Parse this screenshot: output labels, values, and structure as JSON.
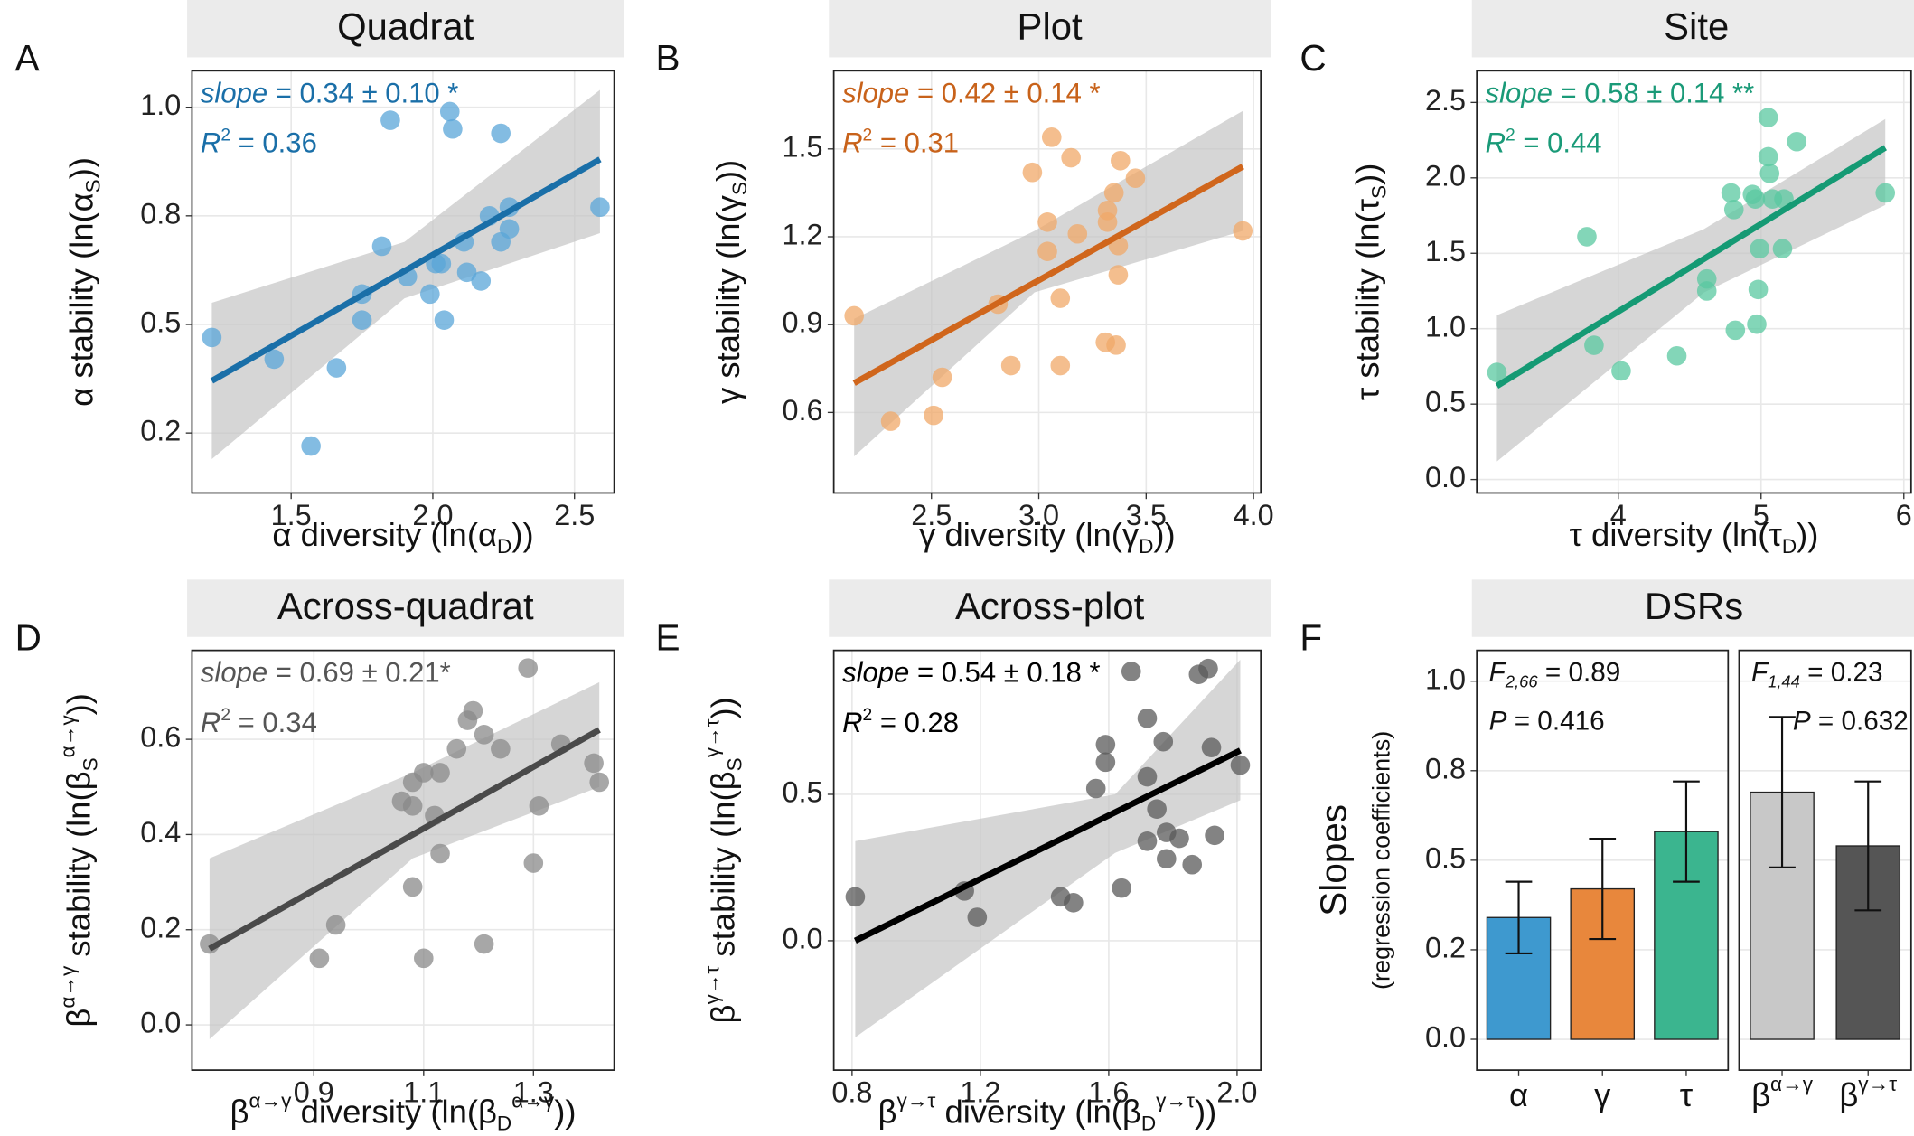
{
  "chart_data": [
    {
      "type": "scatter",
      "panel": "A",
      "title": "Quadrat",
      "color": "#5aa5d8",
      "line_color": "#1a6fa8",
      "text_color": "#1a6fa8",
      "xlabel": [
        "α diversity ",
        "(ln(α",
        {
          "text": "D",
          "style": "sub"
        },
        "))"
      ],
      "ylabel": [
        "α stability ",
        "(ln(α",
        {
          "text": "S",
          "style": "sub"
        },
        "))"
      ],
      "annotations": [
        [
          {
            "text": "slope",
            "style": "italic"
          },
          " = 0.34 ± 0.10 *"
        ],
        [
          {
            "text": "R",
            "style": "italic"
          },
          {
            "text": "2",
            "style": "sup"
          },
          " = 0.36"
        ]
      ],
      "xlim": [
        1.15,
        2.64
      ],
      "ylim": [
        0.112,
        1.084
      ],
      "xticks": [
        1.5,
        {
          "value": 2,
          "label": "2.0"
        },
        2.5
      ],
      "yticks": [
        {
          "value": 0.25,
          "label": "0.2"
        },
        0.5,
        {
          "value": 0.75,
          "label": "0.8"
        },
        {
          "value": 1,
          "label": "1.0"
        }
      ],
      "x": [
        1.22,
        1.44,
        1.57,
        1.66,
        1.75,
        1.75,
        1.82,
        1.85,
        1.91,
        1.99,
        2.01,
        2.03,
        2.04,
        2.06,
        2.07,
        2.11,
        2.12,
        2.17,
        2.2,
        2.24,
        2.24,
        2.27,
        2.27,
        2.59
      ],
      "y": [
        0.47,
        0.42,
        0.22,
        0.4,
        0.57,
        0.51,
        0.68,
        0.97,
        0.61,
        0.57,
        0.64,
        0.64,
        0.51,
        0.99,
        0.95,
        0.69,
        0.62,
        0.6,
        0.75,
        0.94,
        0.69,
        0.77,
        0.72,
        0.77
      ],
      "fit": {
        "x": [
          1.22,
          2.59
        ],
        "y": [
          0.37,
          0.88
        ]
      },
      "band": {
        "x": [
          1.22,
          1.9,
          2.59
        ],
        "lower": [
          0.19,
          0.56,
          0.71
        ],
        "upper": [
          0.55,
          0.69,
          1.04
        ]
      },
      "grid": true
    },
    {
      "type": "scatter",
      "panel": "B",
      "title": "Plot",
      "color": "#f0a868",
      "line_color": "#d0661c",
      "text_color": "#c8621a",
      "xlabel": [
        "γ diversity ",
        "(ln(γ",
        {
          "text": "D",
          "style": "sub"
        },
        "))"
      ],
      "ylabel": [
        "γ stability ",
        "(ln(γ",
        {
          "text": "S",
          "style": "sub"
        },
        "))"
      ],
      "annotations": [
        [
          {
            "text": "slope",
            "style": "italic"
          },
          " = 0.42 ± 0.14 *"
        ],
        [
          {
            "text": "R",
            "style": "italic"
          },
          {
            "text": "2",
            "style": "sup"
          },
          " = 0.31"
        ]
      ],
      "xlim": [
        2.045,
        4.034
      ],
      "ylim": [
        0.325,
        1.767
      ],
      "xticks": [
        2.5,
        {
          "value": 3,
          "label": "3.0"
        },
        3.5,
        {
          "value": 4,
          "label": "4.0"
        }
      ],
      "yticks": [
        0.6,
        0.9,
        1.2,
        1.5
      ],
      "x": [
        2.14,
        2.31,
        2.51,
        2.55,
        2.81,
        2.87,
        2.97,
        3.04,
        3.04,
        3.06,
        3.1,
        3.1,
        3.15,
        3.18,
        3.31,
        3.32,
        3.32,
        3.35,
        3.36,
        3.37,
        3.37,
        3.38,
        3.45,
        3.95
      ],
      "y": [
        0.93,
        0.57,
        0.59,
        0.72,
        0.97,
        0.76,
        1.42,
        1.25,
        1.15,
        1.54,
        0.76,
        0.99,
        1.47,
        1.21,
        0.84,
        1.29,
        1.25,
        1.35,
        0.83,
        1.17,
        1.07,
        1.46,
        1.4,
        1.22
      ],
      "fit": {
        "x": [
          2.14,
          3.95
        ],
        "y": [
          0.7,
          1.44
        ]
      },
      "band": {
        "x": [
          2.14,
          2.98,
          3.95
        ],
        "lower": [
          0.45,
          1.01,
          1.22
        ],
        "upper": [
          0.92,
          1.22,
          1.63
        ]
      },
      "grid": true
    },
    {
      "type": "scatter",
      "panel": "C",
      "title": "Site",
      "color": "#5ac8a0",
      "line_color": "#159a74",
      "text_color": "#1a9a78",
      "xlabel": [
        "τ diversity ",
        "(ln(τ",
        {
          "text": "D",
          "style": "sub"
        },
        "))"
      ],
      "ylabel": [
        "τ stability ",
        "(ln(τ",
        {
          "text": "S",
          "style": "sub"
        },
        "))"
      ],
      "annotations": [
        [
          {
            "text": "slope",
            "style": "italic"
          },
          " = 0.58 ± 0.14 **"
        ],
        [
          {
            "text": "R",
            "style": "italic"
          },
          {
            "text": "2",
            "style": "sup"
          },
          " = 0.44"
        ]
      ],
      "xlim": [
        3.009,
        6.051
      ],
      "ylim": [
        -0.089,
        2.71
      ],
      "xticks": [
        4,
        5,
        6
      ],
      "yticks": [
        {
          "value": 0,
          "label": "0.0"
        },
        0.5,
        {
          "value": 1,
          "label": "1.0"
        },
        1.5,
        {
          "value": 2,
          "label": "2.0"
        },
        2.5
      ],
      "x": [
        3.15,
        3.78,
        3.83,
        4.02,
        4.41,
        4.62,
        4.62,
        4.79,
        4.81,
        4.82,
        4.94,
        4.96,
        4.97,
        4.98,
        4.99,
        5.05,
        5.05,
        5.06,
        5.08,
        5.15,
        5.16,
        5.25,
        5.87
      ],
      "y": [
        0.71,
        1.61,
        0.89,
        0.72,
        0.82,
        1.33,
        1.25,
        1.9,
        1.79,
        0.99,
        1.89,
        1.86,
        1.03,
        1.26,
        1.53,
        2.4,
        2.14,
        2.03,
        1.86,
        1.53,
        1.86,
        2.24,
        1.9
      ],
      "fit": {
        "x": [
          3.15,
          5.87
        ],
        "y": [
          0.62,
          2.2
        ]
      },
      "band": {
        "x": [
          3.15,
          4.6,
          5.87
        ],
        "lower": [
          0.12,
          1.24,
          1.82
        ],
        "upper": [
          1.09,
          1.66,
          2.39
        ]
      },
      "grid": true
    },
    {
      "type": "scatter",
      "panel": "D",
      "title": "Across-quadrat",
      "color": "#8a8a8a",
      "line_color": "#4a4a4a",
      "text_color": "#555555",
      "xlabel": [
        "β",
        {
          "text": "α→γ",
          "style": "sup"
        },
        " diversity (ln(β",
        {
          "text": "D",
          "style": "sub"
        },
        {
          "text": "α→γ",
          "style": "sup"
        },
        "))"
      ],
      "ylabel": [
        "β",
        {
          "text": "α→γ",
          "style": "sup"
        },
        " stability (ln(β",
        {
          "text": "S",
          "style": "sub"
        },
        {
          "text": "α→γ",
          "style": "sup"
        },
        "))"
      ],
      "annotations": [
        [
          {
            "text": "slope",
            "style": "italic"
          },
          " = 0.69 ± 0.21*"
        ],
        [
          {
            "text": "R",
            "style": "italic"
          },
          {
            "text": "2",
            "style": "sup"
          },
          " = 0.34"
        ]
      ],
      "xlim": [
        0.678,
        1.447
      ],
      "ylim": [
        -0.095,
        0.787
      ],
      "xticks": [
        0.9,
        1.1,
        1.3
      ],
      "yticks": [
        {
          "value": 0,
          "label": "0.0"
        },
        0.2,
        0.4,
        0.6
      ],
      "x": [
        0.71,
        0.91,
        0.94,
        1.06,
        1.08,
        1.08,
        1.08,
        1.1,
        1.1,
        1.12,
        1.13,
        1.13,
        1.16,
        1.18,
        1.19,
        1.21,
        1.21,
        1.24,
        1.29,
        1.3,
        1.31,
        1.35,
        1.41,
        1.42
      ],
      "y": [
        0.17,
        0.14,
        0.21,
        0.47,
        0.46,
        0.29,
        0.51,
        0.53,
        0.14,
        0.44,
        0.36,
        0.53,
        0.58,
        0.64,
        0.66,
        0.17,
        0.61,
        0.58,
        0.75,
        0.34,
        0.46,
        0.59,
        0.55,
        0.51
      ],
      "fit": {
        "x": [
          0.71,
          1.42
        ],
        "y": [
          0.16,
          0.62
        ]
      },
      "band": {
        "x": [
          0.71,
          1.08,
          1.42
        ],
        "lower": [
          -0.03,
          0.35,
          0.5
        ],
        "upper": [
          0.35,
          0.53,
          0.72
        ]
      },
      "grid": true
    },
    {
      "type": "scatter",
      "panel": "E",
      "title": "Across-plot",
      "color": "#5a5a5a",
      "line_color": "#000000",
      "text_color": "#000000",
      "xlabel": [
        "β",
        {
          "text": "γ→τ",
          "style": "sup"
        },
        " diversity (ln(β",
        {
          "text": "D",
          "style": "sub"
        },
        {
          "text": "γ→τ",
          "style": "sup"
        },
        "))"
      ],
      "ylabel": [
        "β",
        {
          "text": "γ→τ",
          "style": "sup"
        },
        " stability (ln(β",
        {
          "text": "S",
          "style": "sub"
        },
        {
          "text": "γ→τ",
          "style": "sup"
        },
        "))"
      ],
      "annotations": [
        [
          {
            "text": "slope",
            "style": "italic"
          },
          " = 0.54 ± 0.18 *"
        ],
        [
          {
            "text": "R",
            "style": "italic"
          },
          {
            "text": "2",
            "style": "sup"
          },
          " = 0.28"
        ]
      ],
      "xlim": [
        0.743,
        2.074
      ],
      "ylim": [
        -0.442,
        0.992
      ],
      "xticks": [
        0.8,
        1.2,
        1.6,
        {
          "value": 2,
          "label": "2.0"
        }
      ],
      "yticks": [
        {
          "value": 0,
          "label": "0.0"
        },
        0.5
      ],
      "x": [
        0.81,
        1.15,
        1.19,
        1.45,
        1.49,
        1.56,
        1.59,
        1.59,
        1.64,
        1.67,
        1.72,
        1.72,
        1.72,
        1.75,
        1.77,
        1.78,
        1.78,
        1.82,
        1.86,
        1.88,
        1.91,
        1.92,
        1.93,
        2.01
      ],
      "y": [
        0.15,
        0.17,
        0.08,
        0.15,
        0.13,
        0.52,
        0.67,
        0.61,
        0.18,
        0.92,
        0.56,
        0.34,
        0.76,
        0.45,
        0.68,
        0.37,
        0.28,
        0.35,
        0.26,
        0.91,
        0.93,
        0.66,
        0.36,
        0.6
      ],
      "fit": {
        "x": [
          0.81,
          2.01
        ],
        "y": [
          0,
          0.65
        ]
      },
      "band": {
        "x": [
          0.81,
          1.62,
          2.01
        ],
        "lower": [
          -0.33,
          0.3,
          0.48
        ],
        "upper": [
          0.34,
          0.5,
          0.96
        ]
      },
      "grid": true
    },
    {
      "type": "bar",
      "panel": "F",
      "title": "DSRs",
      "ylabel": "Slopes",
      "ylabel_note": "(regression coefficients)",
      "ylim": [
        -0.086,
        1.086
      ],
      "yticks": [
        {
          "value": 0,
          "label": "0.0"
        },
        {
          "value": 0.25,
          "label": "0.2"
        },
        0.5,
        {
          "value": 0.75,
          "label": "0.8"
        },
        {
          "value": 1,
          "label": "1.0"
        }
      ],
      "grid": true,
      "facets": [
        {
          "categories": [
            [
              "α"
            ],
            [
              "γ"
            ],
            [
              "τ"
            ]
          ],
          "colors": [
            "#3e99cf",
            "#e8873c",
            "#3bb58f"
          ],
          "values": [
            0.34,
            0.42,
            0.58
          ],
          "errors": [
            0.1,
            0.14,
            0.14
          ],
          "annotations": [
            [
              {
                "text": "F",
                "style": "italic"
              },
              {
                "text": "2,66",
                "style": "italic sub"
              },
              " = 0.89"
            ],
            [
              {
                "text": "P",
                "style": "italic"
              },
              " = 0.416"
            ]
          ]
        },
        {
          "categories": [
            [
              "β",
              {
                "text": "α→γ",
                "style": "sup"
              }
            ],
            [
              "β",
              {
                "text": "γ→τ",
                "style": "sup"
              }
            ]
          ],
          "colors": [
            "#c8c8c8",
            "#555555"
          ],
          "values": [
            0.69,
            0.54
          ],
          "errors": [
            0.21,
            0.18
          ],
          "annotations": [
            [
              {
                "text": "F",
                "style": "italic"
              },
              {
                "text": "1,44",
                "style": "italic sub"
              },
              " = 0.23"
            ],
            [
              {
                "text": "P",
                "style": "italic"
              },
              " = 0.632"
            ]
          ]
        }
      ]
    }
  ]
}
